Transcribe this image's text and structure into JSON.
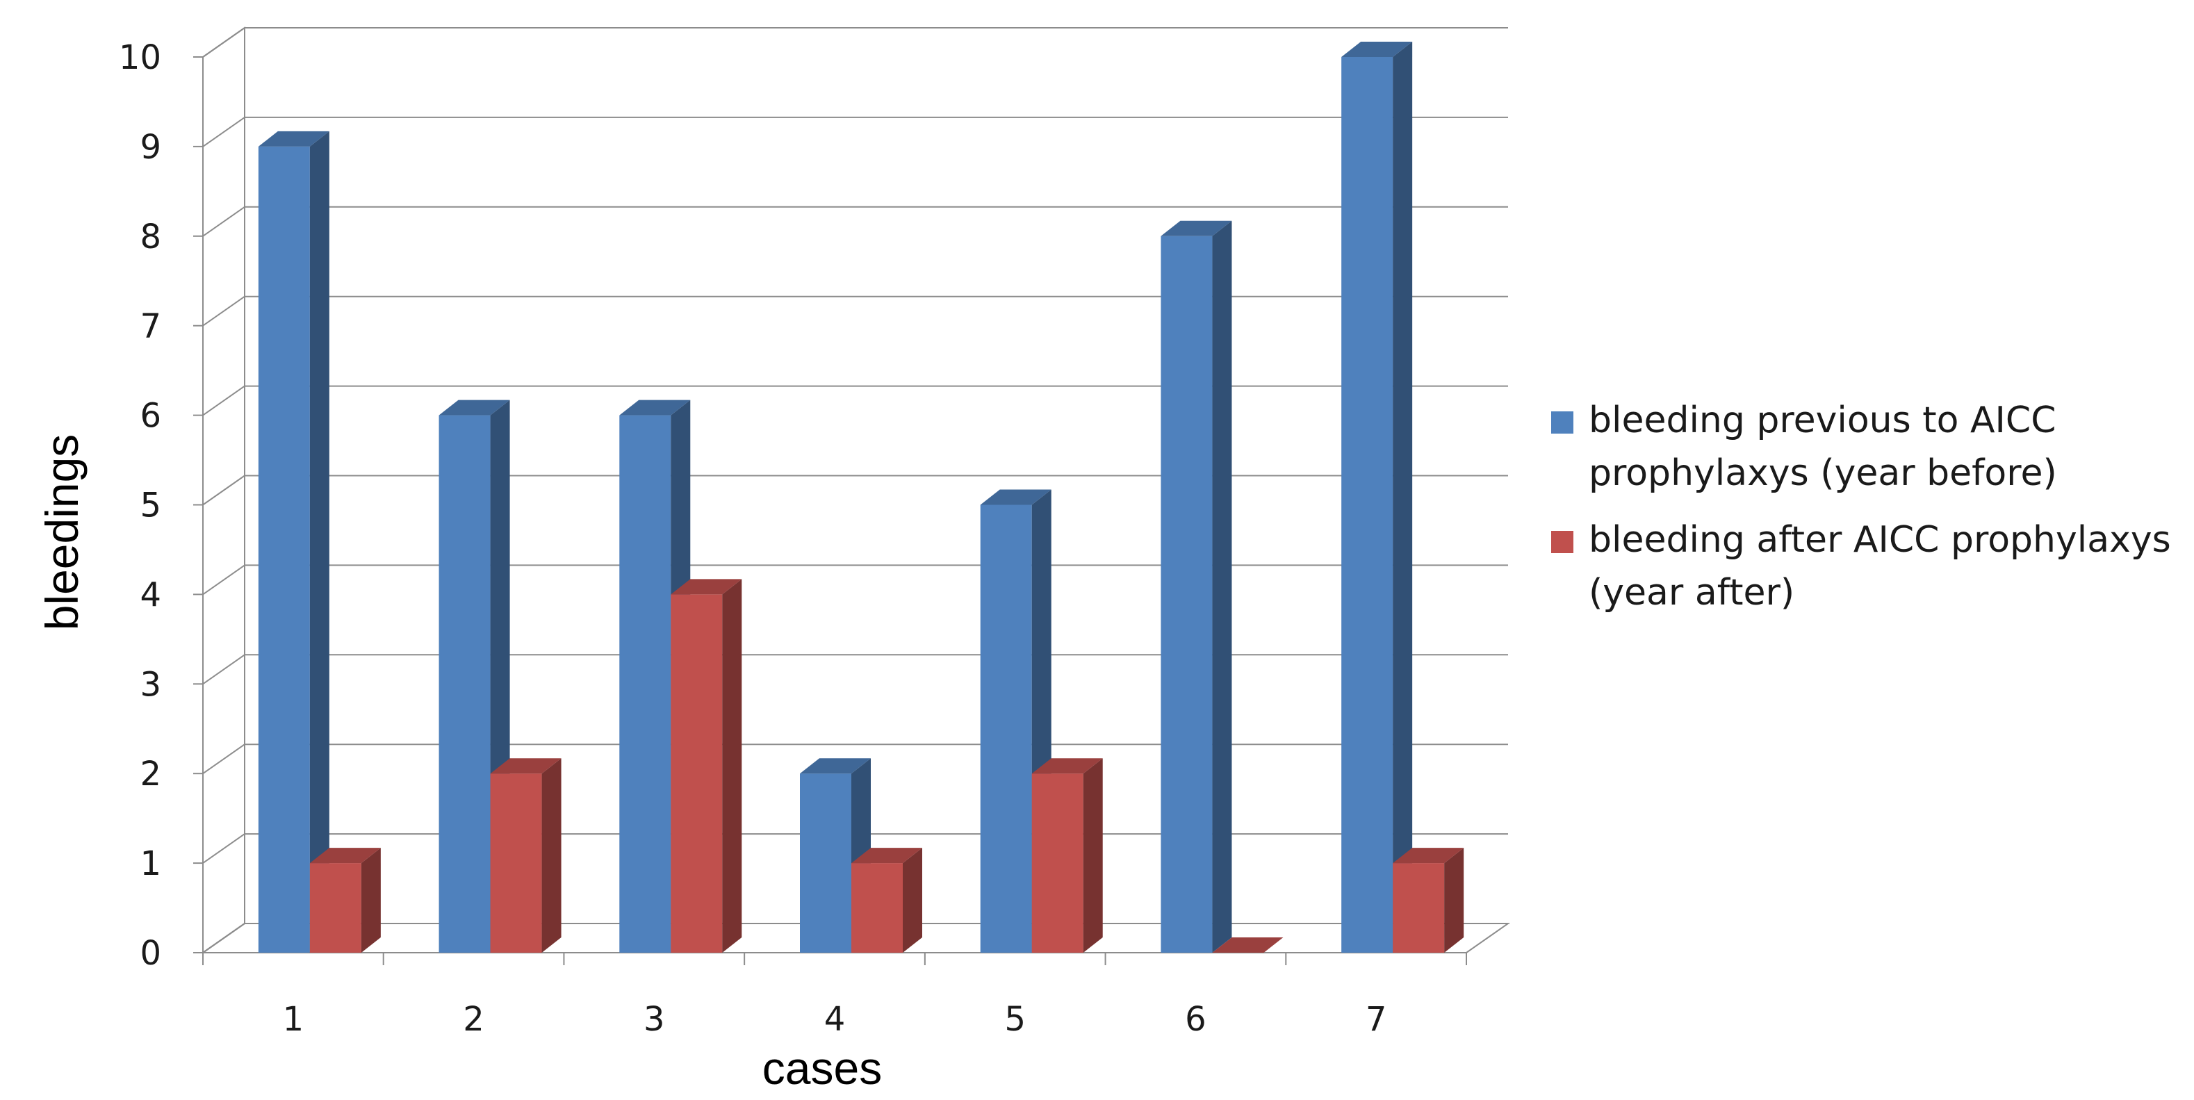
{
  "chart_data": {
    "type": "bar",
    "style": "3d-clustered-column",
    "xlabel": "cases",
    "ylabel": "bleedings",
    "categories": [
      "1",
      "2",
      "3",
      "4",
      "5",
      "6",
      "7"
    ],
    "ylim": [
      0,
      10
    ],
    "yticks": [
      "0",
      "1",
      "2",
      "3",
      "4",
      "5",
      "6",
      "7",
      "8",
      "9",
      "10"
    ],
    "grid": true,
    "legend_position": "right",
    "series": [
      {
        "name": "bleeding previous to AICC prophylaxys (year before)",
        "legend_lines": [
          "bleeding previous to AICC",
          "prophylaxys (year before)"
        ],
        "color": "#4f81bd",
        "values": [
          9,
          6,
          6,
          2,
          5,
          8,
          10
        ]
      },
      {
        "name": "bleeding after AICC prophylaxys (year after)",
        "legend_lines": [
          "bleeding after AICC prophylaxys",
          "(year after)"
        ],
        "color": "#c0504d",
        "values": [
          1,
          2,
          4,
          1,
          2,
          0,
          1
        ]
      }
    ]
  }
}
